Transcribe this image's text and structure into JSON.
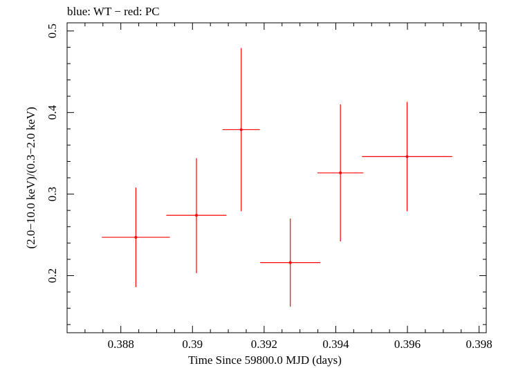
{
  "chart_data": {
    "type": "scatter",
    "title": "blue: WT − red: PC",
    "xlabel": "Time Since 59800.0 MJD (days)",
    "ylabel": "(2.0−10.0 keV)/(0.3−2.0 keV)",
    "xlim": [
      0.3865,
      0.3982
    ],
    "ylim": [
      0.13,
      0.51
    ],
    "x_ticks": [
      0.388,
      0.39,
      0.392,
      0.394,
      0.396,
      0.398
    ],
    "x_tick_labels": [
      "0.388",
      "0.39",
      "0.392",
      "0.394",
      "0.396",
      "0.398"
    ],
    "y_ticks": [
      0.2,
      0.3,
      0.4,
      0.5
    ],
    "y_tick_labels": [
      "0.2",
      "0.3",
      "0.4",
      "0.5"
    ],
    "grid": false,
    "series": [
      {
        "name": "PC",
        "color": "#ff0000",
        "points": [
          {
            "x": 0.38842,
            "y": 0.247,
            "xerr": 0.00095,
            "ylo": 0.186,
            "yhi": 0.308
          },
          {
            "x": 0.39011,
            "y": 0.274,
            "xerr": 0.00084,
            "ylo": 0.203,
            "yhi": 0.344
          },
          {
            "x": 0.39136,
            "y": 0.379,
            "xerr": 0.00052,
            "ylo": 0.279,
            "yhi": 0.479
          },
          {
            "x": 0.39273,
            "y": 0.216,
            "xerr": 0.00084,
            "ylo": 0.162,
            "yhi": 0.27
          },
          {
            "x": 0.39413,
            "y": 0.326,
            "xerr": 0.00064,
            "ylo": 0.242,
            "yhi": 0.41
          },
          {
            "x": 0.39599,
            "y": 0.346,
            "xerr": 0.00126,
            "ylo": 0.279,
            "yhi": 0.413
          }
        ]
      }
    ]
  }
}
